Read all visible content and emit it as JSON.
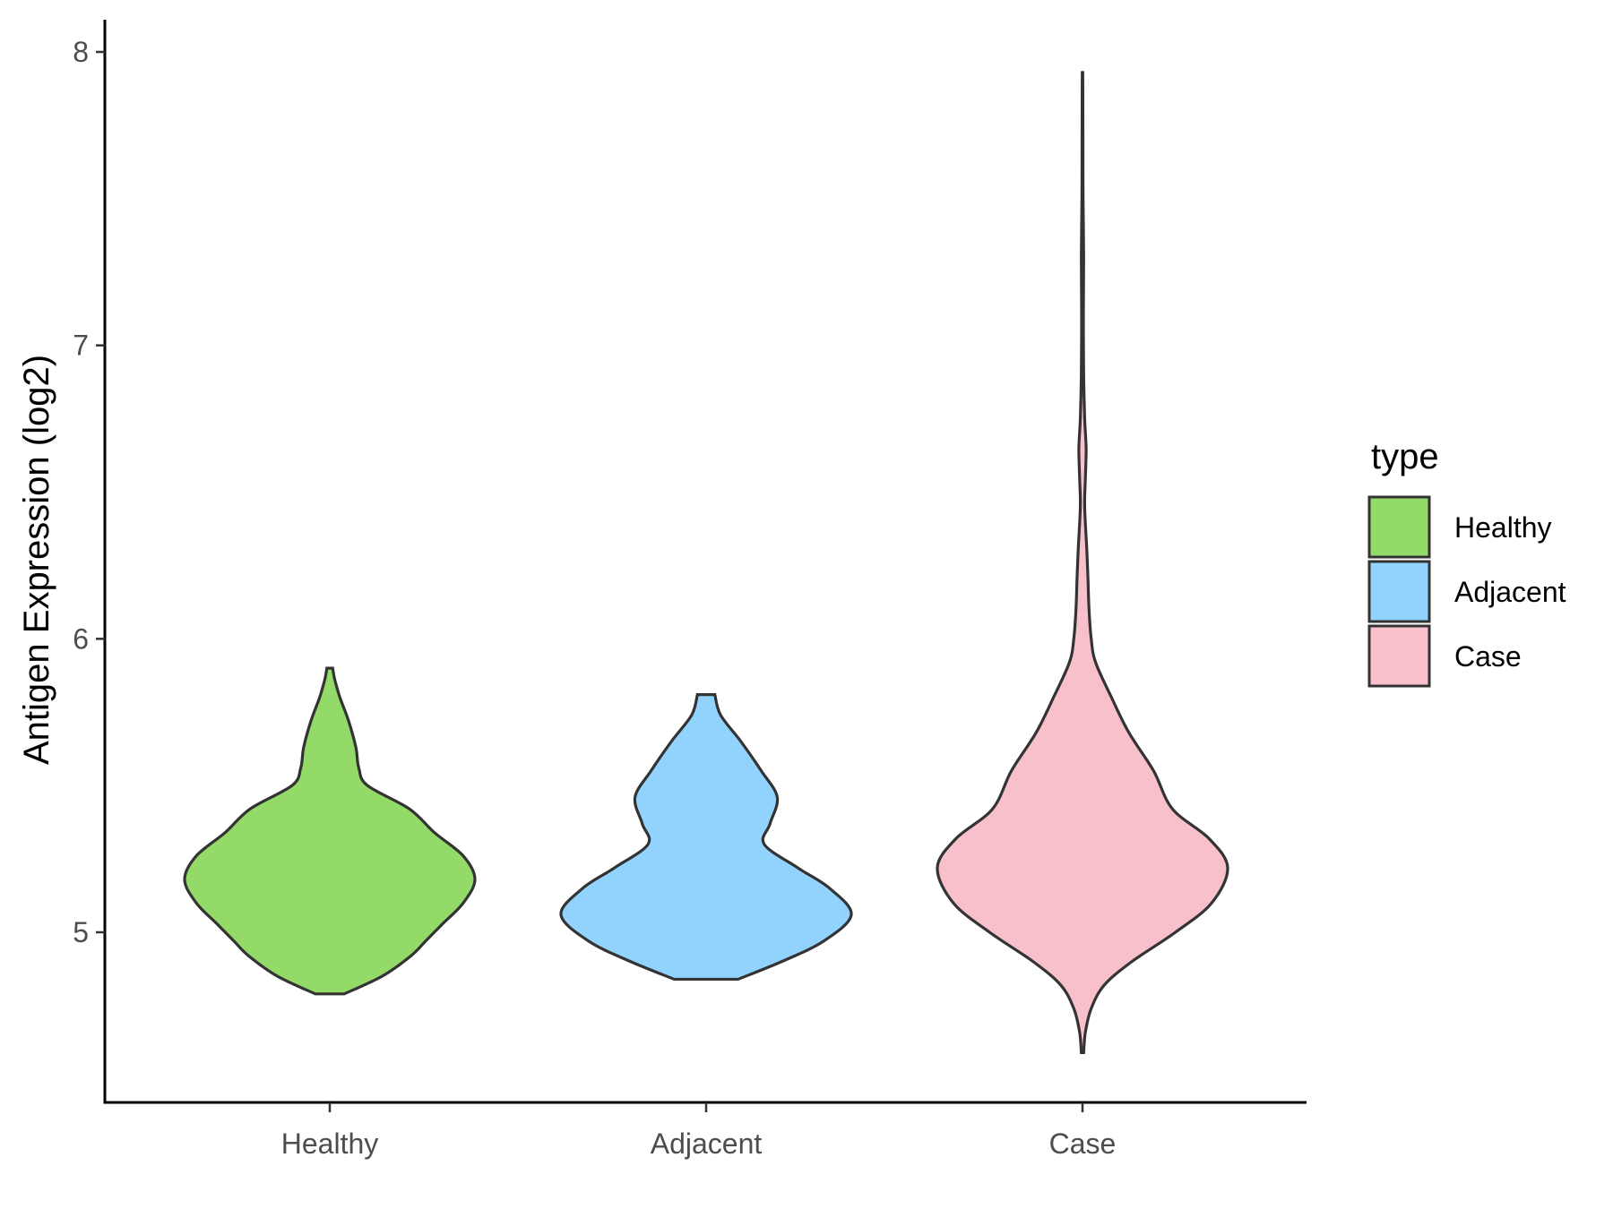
{
  "chart_data": {
    "type": "violin",
    "title": "",
    "xlabel": "",
    "ylabel": "Antigen Expression (log2)",
    "ylim": [
      4.45,
      8.1
    ],
    "yticks": [
      5,
      6,
      7,
      8
    ],
    "categories": [
      "Healthy",
      "Adjacent",
      "Case"
    ],
    "legend": {
      "title": "type",
      "position": "right",
      "entries": [
        "Healthy",
        "Adjacent",
        "Case"
      ]
    },
    "grid": false,
    "series": [
      {
        "name": "Healthy",
        "color": "#93DA69",
        "min": 4.79,
        "max": 5.9,
        "profile": [
          [
            4.79,
            0.1
          ],
          [
            4.85,
            0.36
          ],
          [
            4.92,
            0.56
          ],
          [
            4.97,
            0.66
          ],
          [
            5.03,
            0.78
          ],
          [
            5.1,
            0.92
          ],
          [
            5.18,
            1.0
          ],
          [
            5.26,
            0.92
          ],
          [
            5.34,
            0.72
          ],
          [
            5.42,
            0.55
          ],
          [
            5.5,
            0.26
          ],
          [
            5.56,
            0.2
          ],
          [
            5.63,
            0.18
          ],
          [
            5.72,
            0.13
          ],
          [
            5.8,
            0.07
          ],
          [
            5.86,
            0.035
          ],
          [
            5.9,
            0.02
          ]
        ]
      },
      {
        "name": "Adjacent",
        "color": "#92D3FE",
        "min": 4.84,
        "max": 5.81,
        "profile": [
          [
            4.84,
            0.22
          ],
          [
            4.9,
            0.52
          ],
          [
            4.97,
            0.81
          ],
          [
            5.06,
            1.0
          ],
          [
            5.15,
            0.85
          ],
          [
            5.22,
            0.63
          ],
          [
            5.3,
            0.4
          ],
          [
            5.37,
            0.44
          ],
          [
            5.46,
            0.49
          ],
          [
            5.55,
            0.38
          ],
          [
            5.65,
            0.24
          ],
          [
            5.74,
            0.1
          ],
          [
            5.81,
            0.06
          ]
        ]
      },
      {
        "name": "Case",
        "color": "#F7C0CB",
        "min": 4.59,
        "max": 7.93,
        "profile": [
          [
            4.59,
            0.008
          ],
          [
            4.66,
            0.02
          ],
          [
            4.74,
            0.06
          ],
          [
            4.82,
            0.15
          ],
          [
            4.9,
            0.34
          ],
          [
            5.0,
            0.64
          ],
          [
            5.1,
            0.89
          ],
          [
            5.22,
            1.0
          ],
          [
            5.32,
            0.87
          ],
          [
            5.42,
            0.62
          ],
          [
            5.55,
            0.49
          ],
          [
            5.68,
            0.32
          ],
          [
            5.8,
            0.2
          ],
          [
            5.92,
            0.09
          ],
          [
            6.0,
            0.06
          ],
          [
            6.1,
            0.045
          ],
          [
            6.2,
            0.038
          ],
          [
            6.3,
            0.03
          ],
          [
            6.45,
            0.015
          ],
          [
            6.55,
            0.02
          ],
          [
            6.65,
            0.025
          ],
          [
            6.75,
            0.015
          ],
          [
            6.9,
            0.008
          ],
          [
            7.1,
            0.006
          ],
          [
            7.3,
            0.008
          ],
          [
            7.5,
            0.004
          ],
          [
            7.7,
            0.003
          ],
          [
            7.93,
            0.002
          ]
        ]
      }
    ]
  }
}
